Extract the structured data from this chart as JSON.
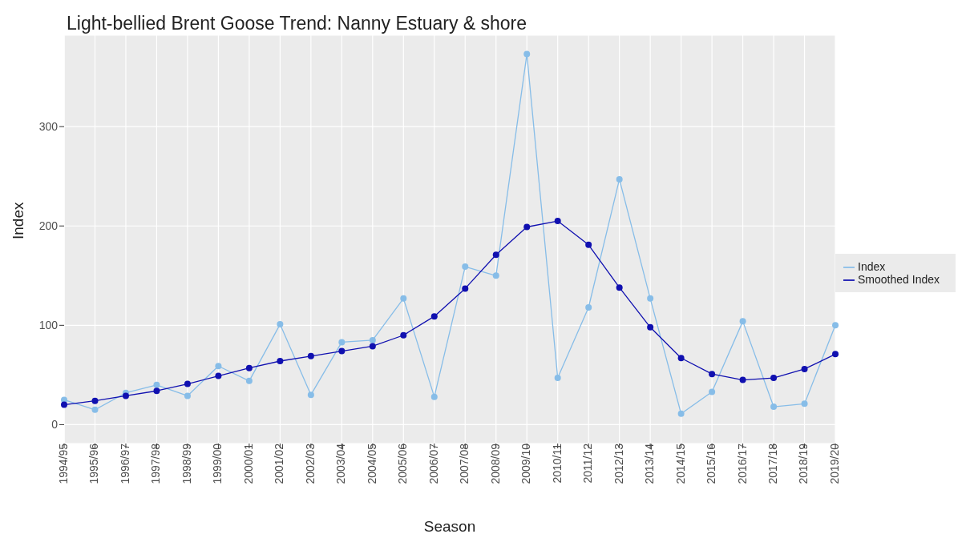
{
  "chart_data": {
    "type": "line",
    "title": "Light-bellied Brent Goose Trend: Nanny Estuary & shore",
    "xlabel": "Season",
    "ylabel": "Index",
    "categories": [
      "1994/95",
      "1995/96",
      "1996/97",
      "1997/98",
      "1998/99",
      "1999/00",
      "2000/01",
      "2001/02",
      "2002/03",
      "2003/04",
      "2004/05",
      "2005/06",
      "2006/07",
      "2007/08",
      "2008/09",
      "2009/10",
      "2010/11",
      "2011/12",
      "2012/13",
      "2013/14",
      "2014/15",
      "2015/16",
      "2016/17",
      "2017/18",
      "2018/19",
      "2019/20"
    ],
    "series": [
      {
        "name": "Index",
        "color": "#87bde8",
        "values": [
          25,
          15,
          32,
          40,
          29,
          59,
          44,
          101,
          30,
          83,
          85,
          127,
          28,
          159,
          150,
          373,
          47,
          118,
          247,
          127,
          11,
          33,
          104,
          18,
          21,
          100
        ]
      },
      {
        "name": "Smoothed Index",
        "color": "#1010b0",
        "values": [
          20,
          24,
          29,
          34,
          41,
          49,
          57,
          64,
          69,
          74,
          79,
          90,
          109,
          137,
          171,
          199,
          205,
          181,
          138,
          98,
          67,
          51,
          45,
          47,
          56,
          71
        ]
      }
    ],
    "ylim": [
      -19,
      392
    ],
    "yticks": [
      0,
      100,
      200,
      300
    ],
    "grid": true,
    "legend": "right",
    "marker": "circle",
    "line_style": "solid"
  }
}
